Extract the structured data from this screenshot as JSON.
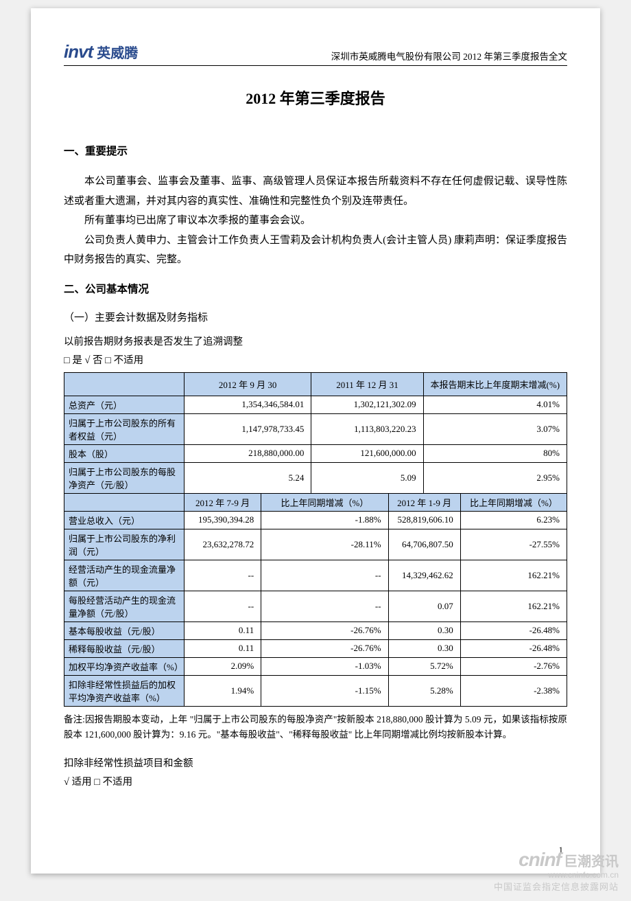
{
  "logo": {
    "en": "invt",
    "cn": "英威腾"
  },
  "header_right": "深圳市英威腾电气股份有限公司 2012 年第三季度报告全文",
  "title": "2012 年第三季度报告",
  "section1": {
    "heading": "一、重要提示",
    "p1": "本公司董事会、监事会及董事、监事、高级管理人员保证本报告所载资料不存在任何虚假记载、误导性陈述或者重大遗漏，并对其内容的真实性、准确性和完整性负个别及连带责任。",
    "p2": "所有董事均已出席了审议本次季报的董事会会议。",
    "p3": "公司负责人黄申力、主管会计工作负责人王雪莉及会计机构负责人(会计主管人员) 康莉声明：保证季度报告中财务报告的真实、完整。"
  },
  "section2": {
    "heading": "二、公司基本情况",
    "sub1": "（一）主要会计数据及财务指标",
    "note1": "以前报告期财务报表是否发生了追溯调整",
    "chk1": "□ 是 √ 否 □ 不适用"
  },
  "table1": {
    "cols_top": [
      "",
      "2012 年 9 月 30",
      "2011 年 12 月 31",
      "本报告期末比上年度期末增减(%)"
    ],
    "rows_top": [
      {
        "label": "总资产（元）",
        "c1": "1,354,346,584.01",
        "c2": "1,302,121,302.09",
        "c3": "4.01%"
      },
      {
        "label": "归属于上市公司股东的所有者权益（元）",
        "c1": "1,147,978,733.45",
        "c2": "1,113,803,220.23",
        "c3": "3.07%"
      },
      {
        "label": "股本（股）",
        "c1": "218,880,000.00",
        "c2": "121,600,000.00",
        "c3": "80%"
      },
      {
        "label": "归属于上市公司股东的每股净资产（元/股）",
        "c1": "5.24",
        "c2": "5.09",
        "c3": "2.95%"
      }
    ],
    "cols_bot": [
      "",
      "2012 年 7-9 月",
      "比上年同期增减（%）",
      "2012 年 1-9 月",
      "比上年同期增减（%）"
    ],
    "rows_bot": [
      {
        "label": "营业总收入（元）",
        "c1": "195,390,394.28",
        "c2": "-1.88%",
        "c3": "528,819,606.10",
        "c4": "6.23%"
      },
      {
        "label": "归属于上市公司股东的净利润（元）",
        "c1": "23,632,278.72",
        "c2": "-28.11%",
        "c3": "64,706,807.50",
        "c4": "-27.55%"
      },
      {
        "label": "经营活动产生的现金流量净额（元）",
        "c1": "--",
        "c2": "--",
        "c3": "14,329,462.62",
        "c4": "162.21%"
      },
      {
        "label": "每股经营活动产生的现金流量净额（元/股）",
        "c1": "--",
        "c2": "--",
        "c3": "0.07",
        "c4": "162.21%"
      },
      {
        "label": "基本每股收益（元/股）",
        "c1": "0.11",
        "c2": "-26.76%",
        "c3": "0.30",
        "c4": "-26.48%"
      },
      {
        "label": "稀释每股收益（元/股）",
        "c1": "0.11",
        "c2": "-26.76%",
        "c3": "0.30",
        "c4": "-26.48%"
      },
      {
        "label": "加权平均净资产收益率（%）",
        "c1": "2.09%",
        "c2": "-1.03%",
        "c3": "5.72%",
        "c4": "-2.76%"
      },
      {
        "label": "扣除非经常性损益后的加权平均净资产收益率（%）",
        "c1": "1.94%",
        "c2": "-1.15%",
        "c3": "5.28%",
        "c4": "-2.38%"
      }
    ]
  },
  "footnote": "备注:因报告期股本变动，上年  \"归属于上市公司股东的每股净资产\"按新股本 218,880,000 股计算为 5.09 元，如果该指标按原股本 121,600,000 股计算为：9.16 元。\"基本每股收益\"、\"稀释每股收益\" 比上年同期增减比例均按新股本计算。",
  "note2": "扣除非经常性损益项目和金额",
  "chk2": "√ 适用 □ 不适用",
  "page_num": "1",
  "watermark": {
    "logo": "cninf",
    "cn": "巨潮资讯",
    "url": "www.cninfo.com.cn",
    "note": "中国证监会指定信息披露网站"
  },
  "colors": {
    "header_bg": "#bcd3ee",
    "logo_blue": "#2a4b8d",
    "border": "#000000",
    "watermark": "#c8c8c8"
  }
}
